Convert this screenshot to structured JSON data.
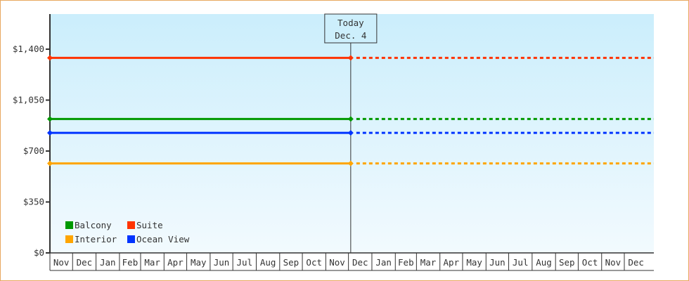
{
  "chart_data": {
    "type": "line",
    "title": "",
    "xlabel": "",
    "ylabel": "",
    "y_ticks": [
      "$0",
      "$350",
      "$700",
      "$1,050",
      "$1,400"
    ],
    "y_tick_values": [
      0,
      350,
      700,
      1050,
      1400
    ],
    "ylim": [
      0,
      1400
    ],
    "x_ticks": [
      "Nov",
      "Dec",
      "Jan",
      "Feb",
      "Mar",
      "Apr",
      "May",
      "Jun",
      "Jul",
      "Aug",
      "Sep",
      "Oct",
      "Nov",
      "Dec",
      "Jan",
      "Feb",
      "Mar",
      "Apr",
      "May",
      "Jun",
      "Jul",
      "Aug",
      "Sep",
      "Oct",
      "Nov",
      "Dec"
    ],
    "today_marker": {
      "line1": "Today",
      "line2": "Dec. 4"
    },
    "grid": false,
    "legend_placement": "bottom-left",
    "series": [
      {
        "name": "Balcony",
        "color": "#009900",
        "value": 920,
        "history": "solid",
        "forecast": "dotted"
      },
      {
        "name": "Suite",
        "color": "#ff3300",
        "value": 1340,
        "history": "solid",
        "forecast": "dotted"
      },
      {
        "name": "Interior",
        "color": "#ffa500",
        "value": 615,
        "history": "solid",
        "forecast": "dotted"
      },
      {
        "name": "Ocean View",
        "color": "#0033ff",
        "value": 825,
        "history": "solid",
        "forecast": "dotted"
      }
    ]
  }
}
